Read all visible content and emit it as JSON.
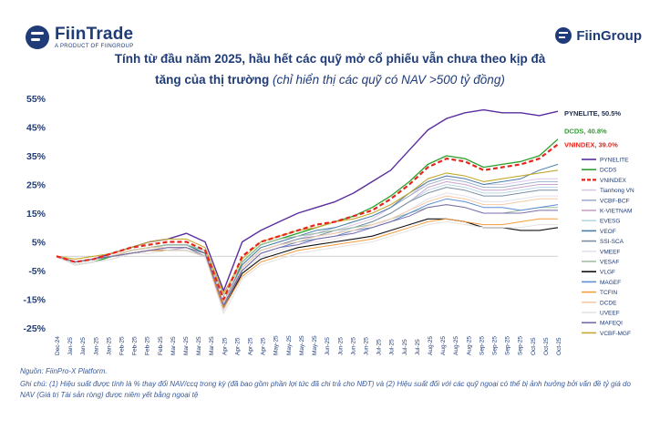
{
  "header": {
    "logo_left": "FiinTrade",
    "logo_left_sub": "A PRODUCT OF FIINGROUP",
    "logo_right": "FiinGroup"
  },
  "title_line1": "Tính từ đầu năm 2025, hầu hết các quỹ mở cổ phiếu vẫn chưa theo kịp đà",
  "title_line2_main": "tăng của thị trường",
  "title_line2_sub": "(chỉ hiển thị các quỹ có NAV >500 tỷ đồng)",
  "footnote_source": "Nguồn: FiinPro-X Platform.",
  "footnote_note": "Ghi chú: (1) Hiệu suất được tính là % thay đổi NAV/ccq trong kỳ (đã bao gồm phần lợi tức đã chi trả cho NĐT) và (2) Hiệu suất đối với các quỹ ngoại có thể bị ảnh hưởng bởi vấn đề tỷ giá do NAV (Giá trị Tài sản ròng) được niêm yết bằng ngoại tệ",
  "chart_data": {
    "type": "line",
    "x": [
      "Dec-24",
      "Jan-25",
      "Jan-25",
      "Jan-25",
      "Feb-25",
      "Feb-25",
      "Mar-25",
      "Mar-25",
      "Mar-25",
      "Apr-25",
      "Apr-25",
      "May-25",
      "May-25",
      "May-25",
      "Jun-25",
      "Jun-25",
      "Jun-25",
      "Jul-25",
      "Jul-25",
      "Jul-25",
      "Aug-25",
      "Aug-25",
      "Aug-25",
      "Sep-25",
      "Sep-25",
      "Sep-25",
      "Oct-25",
      "Oct-25"
    ],
    "x_tick_labels": [
      "Dec-24",
      "Jan-25",
      "Jan-25",
      "Jan-25",
      "Jan-25",
      "Feb-25",
      "Feb-25",
      "Feb-25",
      "Feb-25",
      "Mar-25",
      "Mar-25",
      "Mar-25",
      "Mar-25",
      "Apr-25",
      "Apr-25",
      "Apr-25",
      "Apr-25",
      "May-25",
      "May-25",
      "May-25",
      "May-25",
      "Jun-25",
      "Jun-25",
      "Jun-25",
      "Jun-25",
      "Jul-25",
      "Jul-25",
      "Jul-25",
      "Jul-25",
      "Aug-25",
      "Aug-25",
      "Aug-25",
      "Aug-25",
      "Sep-25",
      "Sep-25",
      "Sep-25",
      "Sep-25",
      "Oct-25",
      "Oct-25",
      "Oct-25"
    ],
    "y_ticks": [
      "-25%",
      "-15%",
      "-5%",
      "5%",
      "15%",
      "25%",
      "35%",
      "45%",
      "55%"
    ],
    "ylim": [
      -25,
      55
    ],
    "y_unit": "%",
    "grid": false,
    "legend_position": "right",
    "end_labels": [
      {
        "series": "PYNELITE",
        "text": "PYNELITE, 50.5%",
        "color": "#1f2d4d"
      },
      {
        "series": "DCDS",
        "text": "DCDS, 40.8%",
        "color": "#2ca02c"
      },
      {
        "series": "VNINDEX",
        "text": "VNINDEX, 39.0%",
        "color": "#e8251c"
      }
    ],
    "series": [
      {
        "name": "PYNELITE",
        "color": "#5b2d9e",
        "width": 1.4,
        "dash": "",
        "values": [
          0,
          -2,
          -1,
          1,
          3,
          5,
          6,
          8,
          5,
          -12,
          5,
          9,
          12,
          15,
          17,
          19,
          22,
          26,
          30,
          37,
          44,
          48,
          50,
          51,
          50,
          50,
          49,
          50.5
        ]
      },
      {
        "name": "DCDS",
        "color": "#2ca02c",
        "width": 1.3,
        "dash": "",
        "values": [
          0,
          -3,
          -2,
          0,
          2,
          3,
          4,
          4,
          1,
          -18,
          -2,
          4,
          6,
          8,
          10,
          12,
          14,
          17,
          21,
          26,
          32,
          35,
          34,
          31,
          32,
          33,
          35,
          40.8
        ]
      },
      {
        "name": "VNINDEX",
        "color": "#e8251c",
        "width": 2.2,
        "dash": "5,3",
        "values": [
          0,
          -2,
          -1,
          1,
          3,
          4,
          5,
          5,
          2,
          -15,
          0,
          5,
          7,
          9,
          11,
          12,
          14,
          16,
          20,
          25,
          31,
          34,
          33,
          30,
          31,
          32,
          34,
          39.0
        ]
      },
      {
        "name": "Tianhong VN",
        "color": "#d9c7e6",
        "width": 1,
        "dash": "",
        "values": [
          0,
          -3,
          -2,
          -1,
          1,
          2,
          3,
          3,
          0,
          -18,
          -4,
          2,
          4,
          6,
          8,
          9,
          11,
          13,
          17,
          21,
          26,
          28,
          27,
          25,
          25,
          26,
          27,
          27
        ]
      },
      {
        "name": "VCBF-BCF",
        "color": "#9fb1cc",
        "width": 1,
        "dash": "",
        "values": [
          0,
          -2,
          -1,
          0,
          2,
          3,
          4,
          4,
          2,
          -16,
          -3,
          3,
          5,
          7,
          8,
          10,
          12,
          14,
          17,
          21,
          25,
          27,
          26,
          24,
          24,
          25,
          26,
          26
        ]
      },
      {
        "name": "K-VIETNAM",
        "color": "#c9a4c9",
        "width": 1,
        "dash": "",
        "values": [
          0,
          -3,
          -2,
          -1,
          1,
          2,
          2,
          3,
          0,
          -19,
          -5,
          1,
          3,
          5,
          7,
          8,
          10,
          12,
          15,
          19,
          24,
          26,
          25,
          23,
          23,
          24,
          25,
          25
        ]
      },
      {
        "name": "EVESG",
        "color": "#b8d7e6",
        "width": 1,
        "dash": "",
        "values": [
          0,
          -2,
          -1,
          0,
          1,
          2,
          3,
          3,
          1,
          -17,
          -4,
          2,
          4,
          5,
          7,
          8,
          10,
          12,
          15,
          19,
          23,
          25,
          24,
          22,
          22,
          23,
          24,
          24
        ]
      },
      {
        "name": "VEOF",
        "color": "#4a7fa8",
        "width": 1,
        "dash": "",
        "values": [
          0,
          -2,
          -1,
          0,
          2,
          3,
          4,
          4,
          1,
          -16,
          -3,
          3,
          5,
          7,
          9,
          10,
          12,
          14,
          17,
          22,
          26,
          28,
          27,
          25,
          26,
          27,
          30,
          32
        ]
      },
      {
        "name": "SSI-SCA",
        "color": "#7a8fa3",
        "width": 1,
        "dash": "",
        "values": [
          0,
          -2,
          -1,
          0,
          1,
          2,
          3,
          3,
          0,
          -17,
          -4,
          2,
          4,
          6,
          7,
          9,
          10,
          12,
          15,
          19,
          22,
          24,
          23,
          21,
          21,
          22,
          23,
          23
        ]
      },
      {
        "name": "VMEEF",
        "color": "#e6e0ec",
        "width": 1,
        "dash": "",
        "values": [
          0,
          -3,
          -2,
          -1,
          1,
          2,
          2,
          2,
          0,
          -19,
          -6,
          0,
          2,
          4,
          5,
          6,
          8,
          10,
          13,
          16,
          20,
          22,
          21,
          19,
          19,
          20,
          21,
          21
        ]
      },
      {
        "name": "VESAF",
        "color": "#a1bfa6",
        "width": 1,
        "dash": "",
        "values": [
          0,
          -2,
          -1,
          0,
          2,
          3,
          4,
          4,
          2,
          -14,
          -2,
          4,
          6,
          7,
          8,
          9,
          10,
          11,
          13,
          15,
          17,
          18,
          17,
          15,
          15,
          16,
          17,
          17
        ]
      },
      {
        "name": "VLGF",
        "color": "#111111",
        "width": 1.1,
        "dash": "",
        "values": [
          0,
          -2,
          -1,
          0,
          1,
          2,
          2,
          2,
          0,
          -18,
          -6,
          -1,
          1,
          3,
          4,
          5,
          6,
          7,
          9,
          11,
          13,
          13,
          12,
          10,
          10,
          9,
          9,
          10
        ]
      },
      {
        "name": "MAGEF",
        "color": "#5a8fd6",
        "width": 1,
        "dash": "",
        "values": [
          0,
          -2,
          -1,
          0,
          1,
          2,
          3,
          3,
          1,
          -17,
          -5,
          1,
          3,
          5,
          6,
          7,
          9,
          10,
          12,
          15,
          18,
          20,
          19,
          17,
          17,
          16,
          17,
          18
        ]
      },
      {
        "name": "TCFIN",
        "color": "#f39c3d",
        "width": 1,
        "dash": "",
        "values": [
          0,
          -2,
          -1,
          0,
          1,
          2,
          2,
          2,
          0,
          -18,
          -7,
          -2,
          0,
          2,
          3,
          4,
          5,
          6,
          8,
          10,
          12,
          13,
          12,
          11,
          11,
          12,
          13,
          13
        ]
      },
      {
        "name": "DCDE",
        "color": "#f5c9a8",
        "width": 1,
        "dash": "",
        "values": [
          0,
          -2,
          -1,
          0,
          2,
          3,
          3,
          3,
          1,
          -16,
          -4,
          2,
          4,
          5,
          7,
          8,
          9,
          11,
          13,
          16,
          19,
          21,
          20,
          18,
          18,
          19,
          20,
          20
        ]
      },
      {
        "name": "UVEEF",
        "color": "#e3e3e3",
        "width": 1,
        "dash": "",
        "values": [
          0,
          -3,
          -2,
          -1,
          1,
          1,
          2,
          2,
          0,
          -20,
          -8,
          -3,
          -1,
          1,
          2,
          3,
          4,
          5,
          7,
          9,
          11,
          12,
          11,
          10,
          10,
          10,
          11,
          11
        ]
      },
      {
        "name": "MAFEQI",
        "color": "#7b6da8",
        "width": 1,
        "dash": "",
        "values": [
          0,
          -2,
          -1,
          0,
          1,
          2,
          3,
          3,
          1,
          -17,
          -5,
          1,
          3,
          4,
          6,
          7,
          8,
          10,
          12,
          14,
          17,
          18,
          17,
          15,
          15,
          15,
          16,
          16
        ]
      },
      {
        "name": "VCBF-MGF",
        "color": "#c4a92e",
        "width": 1.1,
        "dash": "",
        "values": [
          0,
          -1,
          0,
          1,
          3,
          5,
          6,
          6,
          3,
          -13,
          -1,
          5,
          7,
          9,
          10,
          12,
          13,
          15,
          18,
          22,
          27,
          29,
          28,
          26,
          27,
          28,
          29,
          30
        ]
      }
    ]
  }
}
